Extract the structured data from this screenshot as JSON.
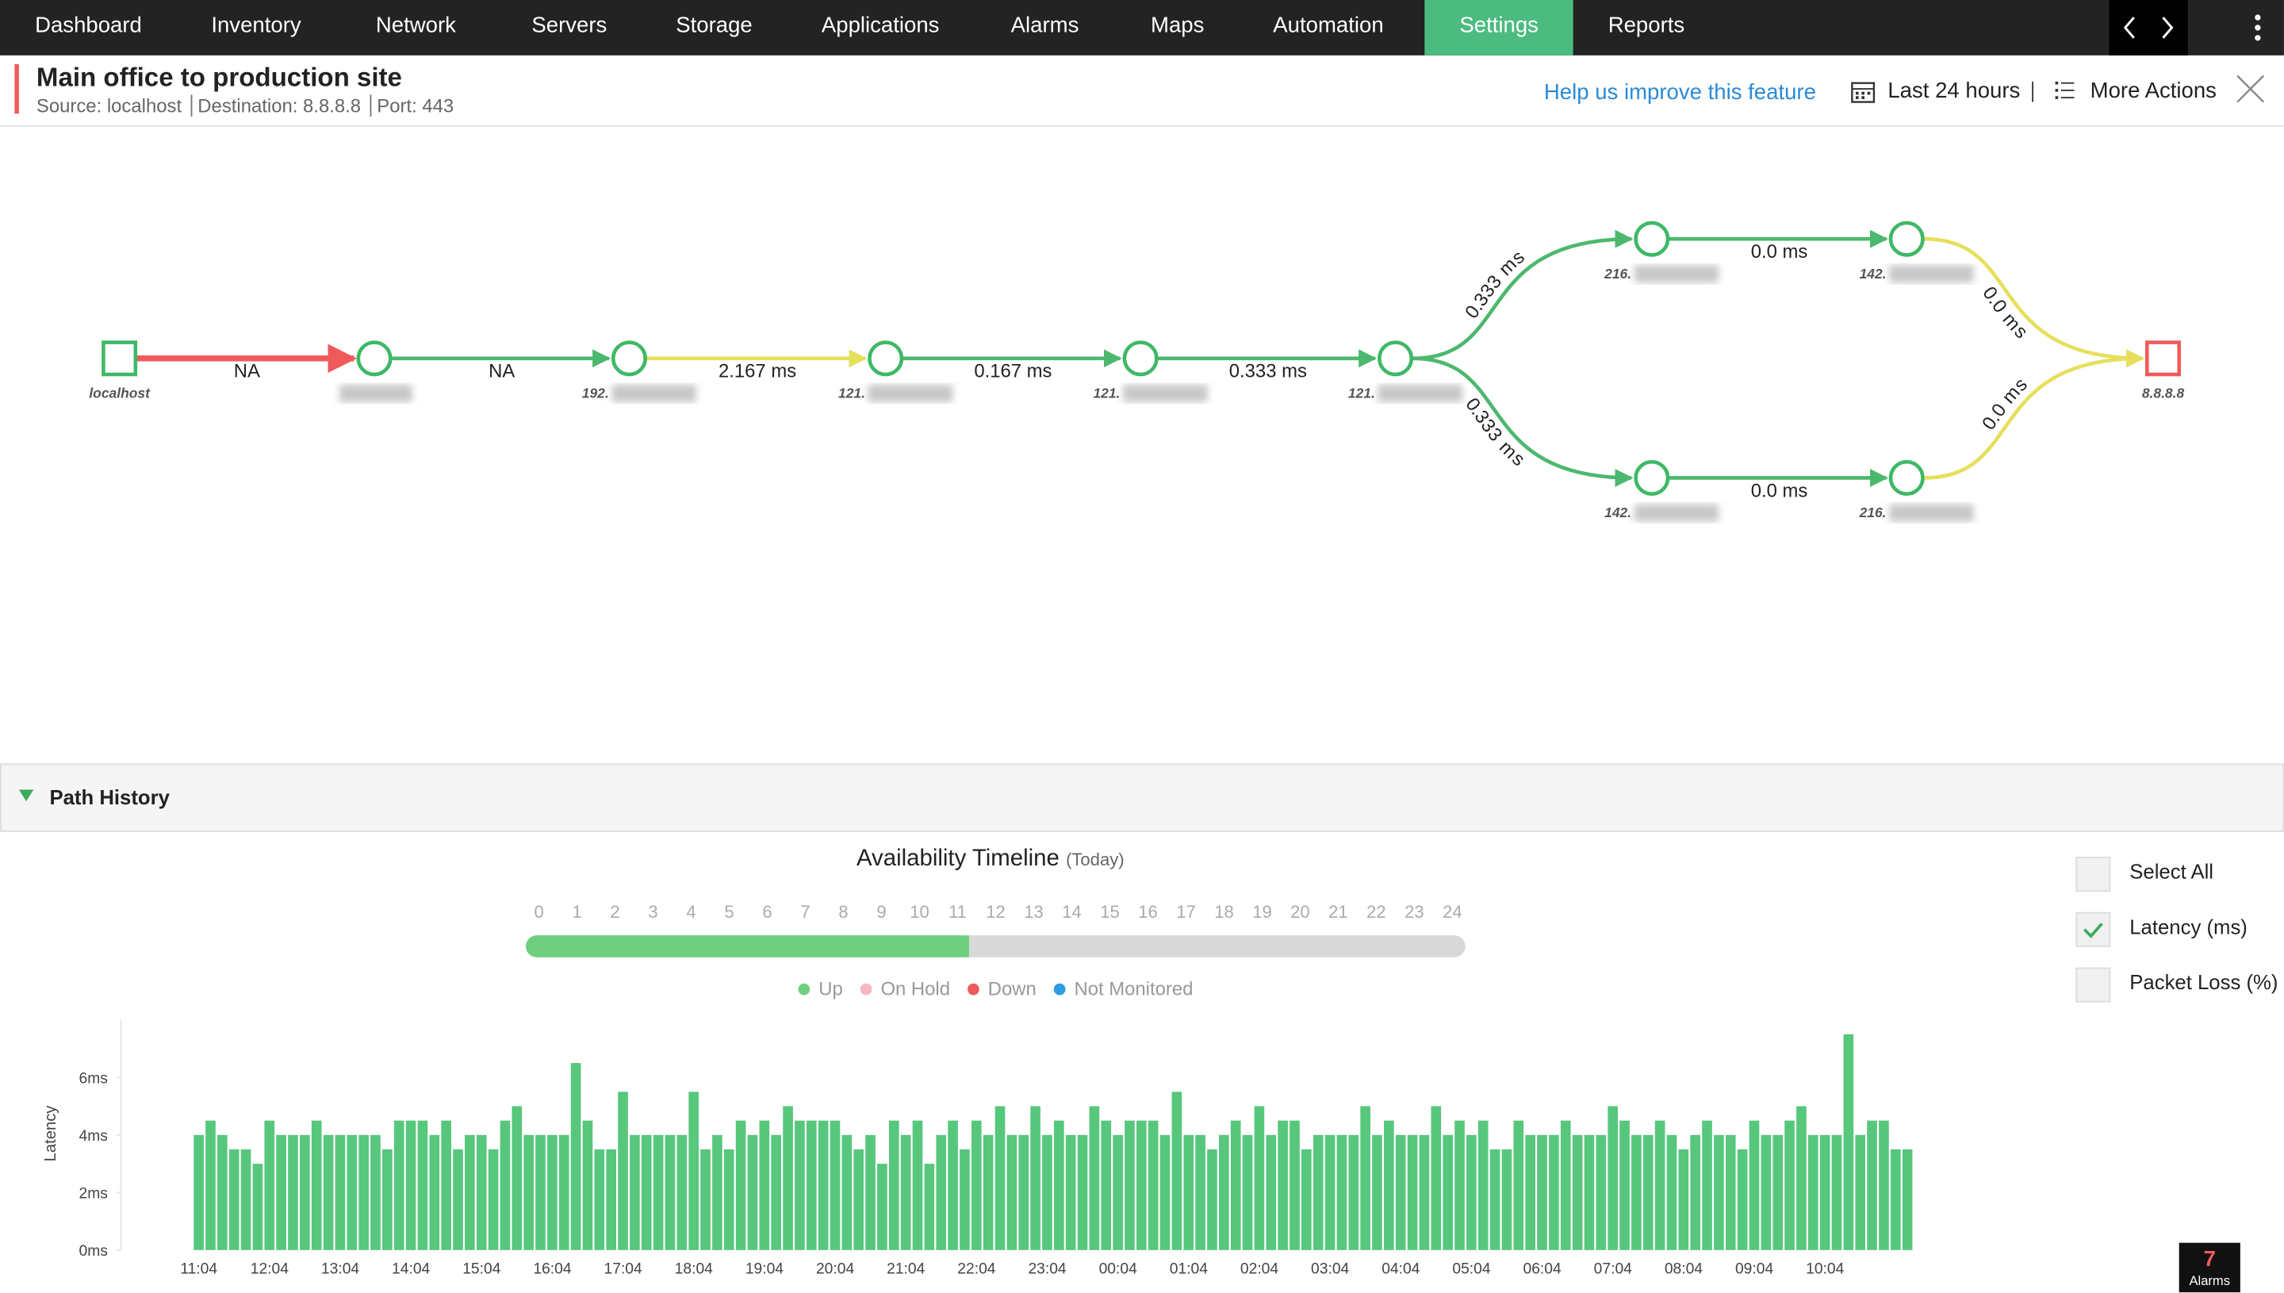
{
  "nav": {
    "items": [
      "Dashboard",
      "Inventory",
      "Network",
      "Servers",
      "Storage",
      "Applications",
      "Alarms",
      "Maps",
      "Automation",
      "Settings",
      "Reports"
    ],
    "active": 9
  },
  "header": {
    "title": "Main office to production site",
    "source": "Source: localhost",
    "destination": "Destination: 8.8.8.8",
    "port": "Port: 443",
    "help_link": "Help us improve this feature",
    "time_range": "Last 24 hours",
    "more_actions": "More Actions"
  },
  "path": {
    "nodes": [
      {
        "label": "localhost",
        "kind": "source"
      },
      {
        "label": null,
        "kind": "hop"
      },
      {
        "label": "192.",
        "kind": "hop"
      },
      {
        "label": "121.",
        "kind": "hop"
      },
      {
        "label": "121.",
        "kind": "hop"
      },
      {
        "label": "121.",
        "kind": "hop"
      },
      {
        "label": "216.",
        "kind": "hop"
      },
      {
        "label": "142.",
        "kind": "hop"
      },
      {
        "label": "142.",
        "kind": "hop"
      },
      {
        "label": "216.",
        "kind": "hop"
      },
      {
        "label": "8.8.8.8",
        "kind": "destination"
      }
    ],
    "edges": [
      {
        "from": 0,
        "to": 1,
        "label": "NA",
        "color": "#f05a5a"
      },
      {
        "from": 1,
        "to": 2,
        "label": "NA",
        "color": "#4cb86e"
      },
      {
        "from": 2,
        "to": 3,
        "label": "2.167 ms",
        "color": "#e6df5c"
      },
      {
        "from": 3,
        "to": 4,
        "label": "0.167 ms",
        "color": "#4cb86e"
      },
      {
        "from": 4,
        "to": 5,
        "label": "0.333 ms",
        "color": "#4cb86e"
      },
      {
        "from": 5,
        "to": 6,
        "label": "0.333 ms",
        "color": "#4cb86e"
      },
      {
        "from": 6,
        "to": 7,
        "label": "0.0 ms",
        "color": "#4cb86e"
      },
      {
        "from": 7,
        "to": 10,
        "label": "0.0 ms",
        "color": "#e6df5c"
      },
      {
        "from": 5,
        "to": 8,
        "label": "0.333 ms",
        "color": "#4cb86e"
      },
      {
        "from": 8,
        "to": 9,
        "label": "0.0 ms",
        "color": "#4cb86e"
      },
      {
        "from": 9,
        "to": 10,
        "label": "0.0 ms",
        "color": "#e6df5c"
      }
    ]
  },
  "path_history": {
    "title": "Path History",
    "timeline": {
      "title": "Availability Timeline",
      "subtitle": "(Today)",
      "hours": [
        0,
        1,
        2,
        3,
        4,
        5,
        6,
        7,
        8,
        9,
        10,
        11,
        12,
        13,
        14,
        15,
        16,
        17,
        18,
        19,
        20,
        21,
        22,
        23,
        24
      ],
      "up_until": 11.3,
      "legend": [
        {
          "name": "Up",
          "color": "#6fcf7f"
        },
        {
          "name": "On Hold",
          "color": "#f7b8c4"
        },
        {
          "name": "Down",
          "color": "#ef5b5b"
        },
        {
          "name": "Not Monitored",
          "color": "#2d9be0"
        }
      ]
    },
    "options": [
      {
        "label": "Select All",
        "checked": false
      },
      {
        "label": "Latency (ms)",
        "checked": true
      },
      {
        "label": "Packet Loss (%)",
        "checked": false
      }
    ]
  },
  "chart_data": {
    "type": "bar",
    "y_label": "Latency",
    "color": "#57c77c",
    "xtick_labels": [
      "11:04",
      "12:04",
      "13:04",
      "14:04",
      "15:04",
      "16:04",
      "17:04",
      "18:04",
      "19:04",
      "20:04",
      "21:04",
      "22:04",
      "23:04",
      "00:04",
      "01:04",
      "02:04",
      "03:04",
      "04:04",
      "05:04",
      "06:04",
      "07:04",
      "08:04",
      "09:04",
      "10:04"
    ],
    "values": [
      4,
      4.5,
      4,
      3.5,
      3.5,
      3,
      4.5,
      4,
      4,
      4,
      4.5,
      4,
      4,
      4,
      4,
      4,
      3.5,
      4.5,
      4.5,
      4.5,
      4,
      4.5,
      3.5,
      4,
      4,
      3.5,
      4.5,
      5,
      4,
      4,
      4,
      4,
      6.5,
      4.5,
      3.5,
      3.5,
      5.5,
      4,
      4,
      4,
      4,
      4,
      5.5,
      3.5,
      4,
      3.5,
      4.5,
      4,
      4.5,
      4,
      5,
      4.5,
      4.5,
      4.5,
      4.5,
      4,
      3.5,
      4,
      3,
      4.5,
      4,
      4.5,
      3,
      4,
      4.5,
      3.5,
      4.5,
      4,
      5,
      4,
      4,
      5,
      4,
      4.5,
      4,
      4,
      5,
      4.5,
      4,
      4.5,
      4.5,
      4.5,
      4,
      5.5,
      4,
      4,
      3.5,
      4,
      4.5,
      4,
      5,
      4,
      4.5,
      4.5,
      3.5,
      4,
      4,
      4,
      4,
      5,
      4,
      4.5,
      4,
      4,
      4,
      5,
      4,
      4.5,
      4,
      4.5,
      3.5,
      3.5,
      4.5,
      4,
      4,
      4,
      4.5,
      4,
      4,
      4,
      5,
      4.5,
      4,
      4,
      4.5,
      4,
      3.5,
      4,
      4.5,
      4,
      4,
      3.5,
      4.5,
      4,
      4,
      4.5,
      5,
      4,
      4,
      4,
      7.5,
      4,
      4.5,
      4.5,
      3.5,
      3.5
    ],
    "ylim": [
      0,
      8
    ],
    "yticks": [
      {
        "value": 0,
        "label": "0ms"
      },
      {
        "value": 2,
        "label": "2ms"
      },
      {
        "value": 4,
        "label": "4ms"
      },
      {
        "value": 6,
        "label": "6ms"
      }
    ]
  },
  "alarms": {
    "count": 7,
    "label": "Alarms"
  }
}
